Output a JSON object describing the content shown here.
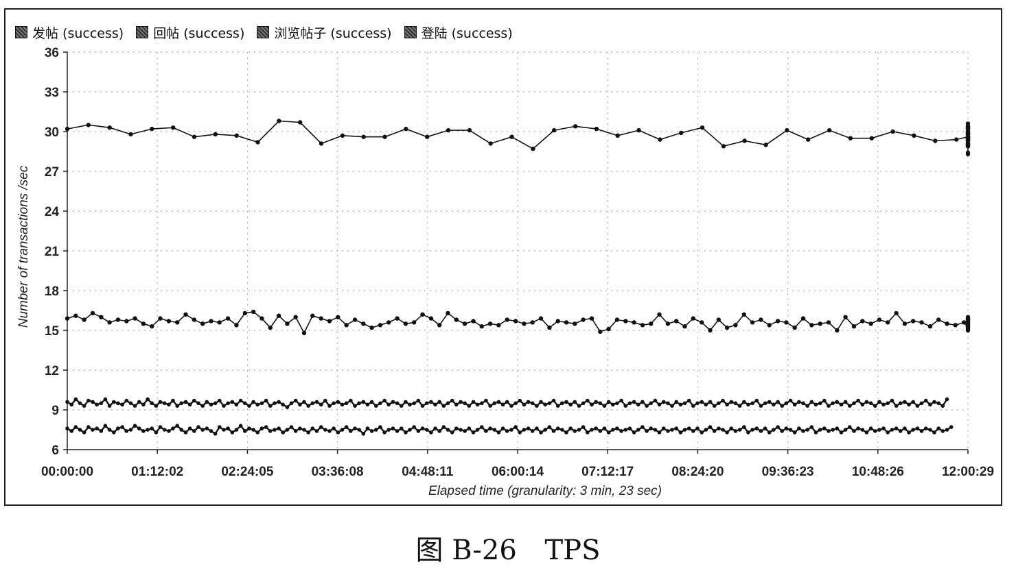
{
  "caption": {
    "figure_label": "图 B-26",
    "figure_title": "TPS"
  },
  "colors": {
    "series": "#111111",
    "grid": "#9a9a9a",
    "background": "#ffffff"
  },
  "chart_data": {
    "type": "line",
    "title": "",
    "xlabel": "Elapsed time (granularity: 3 min, 23 sec)",
    "ylabel": "Number of transactions /sec",
    "ylim": [
      6,
      36
    ],
    "yticks": [
      "6",
      "9",
      "12",
      "15",
      "18",
      "21",
      "24",
      "27",
      "30",
      "33",
      "36"
    ],
    "xticks": [
      "00:00:00",
      "01:12:02",
      "02:24:05",
      "03:36:08",
      "04:48:11",
      "06:00:14",
      "07:12:17",
      "08:24:20",
      "09:36:23",
      "10:48:26",
      "12:00:29"
    ],
    "xlim_seconds": [
      0,
      43229
    ],
    "grid": true,
    "legend_position": "top-left",
    "series": [
      {
        "name": "发帖 (success)",
        "x_start_seconds": 0,
        "x_step_seconds": 203,
        "values": [
          7.6,
          7.4,
          7.7,
          7.5,
          7.3,
          7.7,
          7.5,
          7.6,
          7.4,
          7.8,
          7.5,
          7.3,
          7.6,
          7.7,
          7.4,
          7.5,
          7.8,
          7.6,
          7.4,
          7.5,
          7.6,
          7.3,
          7.7,
          7.5,
          7.4,
          7.6,
          7.8,
          7.5,
          7.3,
          7.6,
          7.4,
          7.7,
          7.5,
          7.6,
          7.4,
          7.2,
          7.7,
          7.5,
          7.6,
          7.3,
          7.5,
          7.8,
          7.4,
          7.6,
          7.5,
          7.3,
          7.6,
          7.7,
          7.4,
          7.5,
          7.6,
          7.3,
          7.5,
          7.7,
          7.4,
          7.6,
          7.5,
          7.3,
          7.6,
          7.4,
          7.7,
          7.5,
          7.4,
          7.6,
          7.3,
          7.5,
          7.7,
          7.4,
          7.6,
          7.5,
          7.2,
          7.6,
          7.4,
          7.5,
          7.7,
          7.3,
          7.5,
          7.6,
          7.4,
          7.6,
          7.3,
          7.5,
          7.7,
          7.4,
          7.6,
          7.5,
          7.3,
          7.6,
          7.4,
          7.7,
          7.5,
          7.3,
          7.6,
          7.5,
          7.4,
          7.6,
          7.3,
          7.5,
          7.7,
          7.4,
          7.6,
          7.5,
          7.3,
          7.6,
          7.4,
          7.5,
          7.7,
          7.3,
          7.5,
          7.6,
          7.4,
          7.6,
          7.3,
          7.5,
          7.7,
          7.4,
          7.6,
          7.5,
          7.3,
          7.6,
          7.4,
          7.5,
          7.7,
          7.3,
          7.5,
          7.6,
          7.4,
          7.6,
          7.3,
          7.5,
          7.6,
          7.4,
          7.5,
          7.6,
          7.3,
          7.5,
          7.7,
          7.4,
          7.6,
          7.5,
          7.3,
          7.6,
          7.4,
          7.5,
          7.6,
          7.3,
          7.5,
          7.6,
          7.4,
          7.6,
          7.3,
          7.5,
          7.7,
          7.4,
          7.6,
          7.5,
          7.3,
          7.6,
          7.4,
          7.5,
          7.7,
          7.3,
          7.5,
          7.6,
          7.4,
          7.6,
          7.3,
          7.5,
          7.7,
          7.4,
          7.6,
          7.5,
          7.3,
          7.6,
          7.4,
          7.5,
          7.7,
          7.3,
          7.5,
          7.6,
          7.4,
          7.5,
          7.6,
          7.3,
          7.5,
          7.7,
          7.4,
          7.6,
          7.5,
          7.3,
          7.6,
          7.4,
          7.5,
          7.6,
          7.3,
          7.5,
          7.6,
          7.4,
          7.6,
          7.3,
          7.5,
          7.6,
          7.4,
          7.6,
          7.5,
          7.3,
          7.6,
          7.4,
          7.5,
          7.7
        ]
      },
      {
        "name": "回帖 (success)",
        "x_start_seconds": 0,
        "x_step_seconds": 203,
        "values": [
          9.6,
          9.4,
          9.8,
          9.5,
          9.3,
          9.7,
          9.6,
          9.4,
          9.5,
          9.8,
          9.3,
          9.6,
          9.5,
          9.4,
          9.7,
          9.5,
          9.3,
          9.6,
          9.4,
          9.8,
          9.5,
          9.3,
          9.6,
          9.5,
          9.4,
          9.7,
          9.3,
          9.5,
          9.6,
          9.4,
          9.7,
          9.5,
          9.3,
          9.6,
          9.4,
          9.5,
          9.7,
          9.3,
          9.5,
          9.6,
          9.4,
          9.7,
          9.5,
          9.3,
          9.6,
          9.4,
          9.5,
          9.7,
          9.3,
          9.5,
          9.6,
          9.4,
          9.2,
          9.5,
          9.7,
          9.4,
          9.6,
          9.3,
          9.5,
          9.6,
          9.4,
          9.7,
          9.3,
          9.5,
          9.6,
          9.4,
          9.5,
          9.7,
          9.3,
          9.5,
          9.6,
          9.4,
          9.6,
          9.3,
          9.5,
          9.7,
          9.4,
          9.6,
          9.5,
          9.3,
          9.6,
          9.4,
          9.5,
          9.7,
          9.3,
          9.5,
          9.6,
          9.4,
          9.6,
          9.3,
          9.5,
          9.7,
          9.4,
          9.6,
          9.5,
          9.3,
          9.6,
          9.4,
          9.5,
          9.7,
          9.3,
          9.5,
          9.6,
          9.4,
          9.6,
          9.3,
          9.5,
          9.7,
          9.4,
          9.6,
          9.5,
          9.3,
          9.6,
          9.4,
          9.5,
          9.7,
          9.3,
          9.5,
          9.6,
          9.4,
          9.6,
          9.3,
          9.5,
          9.7,
          9.4,
          9.6,
          9.5,
          9.3,
          9.6,
          9.4,
          9.5,
          9.7,
          9.3,
          9.5,
          9.6,
          9.4,
          9.6,
          9.3,
          9.5,
          9.7,
          9.4,
          9.6,
          9.5,
          9.3,
          9.6,
          9.4,
          9.5,
          9.7,
          9.3,
          9.5,
          9.6,
          9.4,
          9.6,
          9.3,
          9.5,
          9.7,
          9.4,
          9.6,
          9.5,
          9.3,
          9.6,
          9.4,
          9.5,
          9.7,
          9.3,
          9.5,
          9.6,
          9.4,
          9.6,
          9.3,
          9.5,
          9.7,
          9.4,
          9.6,
          9.5,
          9.3,
          9.6,
          9.4,
          9.5,
          9.7,
          9.3,
          9.5,
          9.6,
          9.4,
          9.6,
          9.3,
          9.5,
          9.7,
          9.4,
          9.6,
          9.5,
          9.3,
          9.6,
          9.4,
          9.5,
          9.7,
          9.3,
          9.5,
          9.6,
          9.4,
          9.6,
          9.3,
          9.5,
          9.7,
          9.4,
          9.6,
          9.5,
          9.3,
          9.8
        ]
      },
      {
        "name": "浏览帖子 (success)",
        "x_start_seconds": 0,
        "x_step_seconds": 406,
        "values": [
          15.9,
          16.1,
          15.8,
          16.3,
          16.0,
          15.6,
          15.8,
          15.7,
          15.9,
          15.5,
          15.3,
          15.9,
          15.7,
          15.6,
          16.2,
          15.8,
          15.5,
          15.7,
          15.6,
          15.9,
          15.4,
          16.3,
          16.4,
          15.9,
          15.2,
          16.1,
          15.5,
          16.0,
          14.8,
          16.1,
          15.9,
          15.7,
          16.0,
          15.4,
          15.8,
          15.5,
          15.2,
          15.4,
          15.6,
          15.9,
          15.5,
          15.6,
          16.2,
          15.9,
          15.4,
          16.3,
          15.8,
          15.5,
          15.7,
          15.3,
          15.5,
          15.4,
          15.8,
          15.7,
          15.5,
          15.6,
          15.9,
          15.2,
          15.7,
          15.6,
          15.5,
          15.8,
          15.9,
          14.9,
          15.1,
          15.8,
          15.7,
          15.6,
          15.4,
          15.5,
          16.2,
          15.5,
          15.7,
          15.3,
          15.9,
          15.6,
          15.0,
          15.8,
          15.2,
          15.4,
          16.2,
          15.6,
          15.8,
          15.4,
          15.7,
          15.6,
          15.2,
          15.9,
          15.4,
          15.5,
          15.6,
          15.0,
          16.0,
          15.3,
          15.7,
          15.5,
          15.8,
          15.6,
          16.3,
          15.5,
          15.7,
          15.6,
          15.3,
          15.8,
          15.5,
          15.4,
          15.6,
          15.2,
          15.0,
          15.7,
          15.4,
          15.9,
          15.3,
          15.8,
          15.6,
          16.0,
          15.4,
          15.8,
          15.6,
          15.1,
          15.6,
          15.5,
          15.3
        ]
      },
      {
        "name": "登陆 (success)",
        "x_start_seconds": 0,
        "x_step_seconds": 1016,
        "values": [
          30.2,
          30.5,
          30.3,
          29.8,
          30.2,
          30.3,
          29.6,
          29.8,
          29.7,
          29.2,
          30.8,
          30.7,
          29.1,
          29.7,
          29.6,
          29.6,
          30.2,
          29.6,
          30.1,
          30.1,
          29.1,
          29.6,
          28.7,
          30.1,
          30.4,
          30.2,
          29.7,
          30.1,
          29.4,
          29.9,
          30.3,
          28.9,
          29.3,
          29.0,
          30.1,
          29.4,
          30.1,
          29.5,
          29.5,
          30.0,
          29.7,
          29.3,
          29.4,
          29.6,
          30.0,
          29.8,
          29.9,
          29.4,
          29.5,
          28.9,
          29.3,
          30.0,
          29.1,
          30.4,
          29.5,
          28.3,
          29.5,
          29.5,
          29.3,
          28.4,
          29.8,
          29.6,
          29.0,
          29.8,
          30.3,
          29.1,
          29.3,
          29.1,
          30.2,
          29.8,
          29.0,
          30.3,
          29.8,
          30.4,
          30.2,
          29.6,
          29.9,
          29.3,
          30.6,
          29.9,
          28.9,
          29.0
        ]
      }
    ]
  }
}
